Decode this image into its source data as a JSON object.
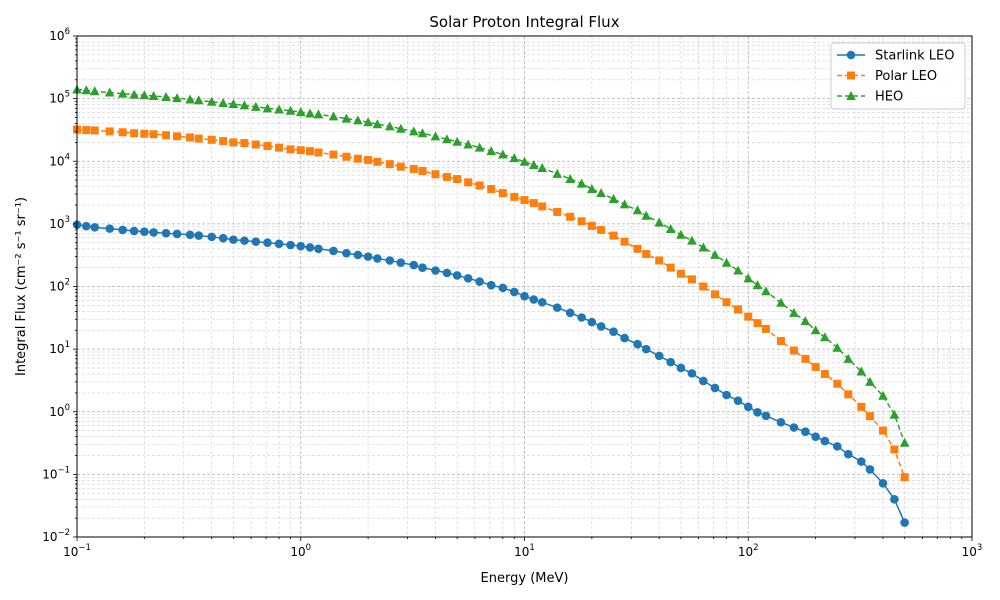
{
  "chart_data": {
    "type": "line",
    "title": "Solar Proton Integral Flux",
    "xlabel": "Energy (MeV)",
    "ylabel": "Integral Flux (cm⁻² s⁻¹ sr⁻¹)",
    "xscale": "log",
    "yscale": "log",
    "xlim": [
      0.1,
      1000
    ],
    "ylim": [
      0.01,
      1000000
    ],
    "grid": "major and minor",
    "legend_position": "upper-right",
    "x_ticks": [
      {
        "base": "10",
        "exp": "−1"
      },
      {
        "base": "10",
        "exp": "0"
      },
      {
        "base": "10",
        "exp": "1"
      },
      {
        "base": "10",
        "exp": "2"
      },
      {
        "base": "10",
        "exp": "3"
      }
    ],
    "y_ticks": [
      {
        "base": "10",
        "exp": "−2"
      },
      {
        "base": "10",
        "exp": "−1"
      },
      {
        "base": "10",
        "exp": "0"
      },
      {
        "base": "10",
        "exp": "1"
      },
      {
        "base": "10",
        "exp": "2"
      },
      {
        "base": "10",
        "exp": "3"
      },
      {
        "base": "10",
        "exp": "4"
      },
      {
        "base": "10",
        "exp": "5"
      },
      {
        "base": "10",
        "exp": "6"
      }
    ],
    "x": [
      0.1,
      0.11,
      0.12,
      0.14,
      0.16,
      0.18,
      0.2,
      0.22,
      0.25,
      0.28,
      0.32,
      0.35,
      0.4,
      0.45,
      0.5,
      0.56,
      0.63,
      0.71,
      0.8,
      0.9,
      1.0,
      1.1,
      1.2,
      1.4,
      1.6,
      1.8,
      2.0,
      2.2,
      2.5,
      2.8,
      3.2,
      3.5,
      4.0,
      4.5,
      5.0,
      5.6,
      6.3,
      7.1,
      8.0,
      9.0,
      10,
      11,
      12,
      14,
      16,
      18,
      20,
      22,
      25,
      28,
      32,
      35,
      40,
      45,
      50,
      56,
      63,
      71,
      80,
      90,
      100,
      110,
      120,
      140,
      160,
      180,
      200,
      220,
      250,
      280,
      320,
      350,
      400,
      450,
      500
    ],
    "series": [
      {
        "name": "Starlink LEO",
        "color": "#1f77b4",
        "marker": "circle",
        "linestyle": "solid",
        "values": [
          970,
          920,
          880,
          840,
          800,
          770,
          750,
          730,
          710,
          690,
          670,
          650,
          620,
          590,
          560,
          540,
          520,
          500,
          480,
          460,
          440,
          420,
          400,
          370,
          340,
          320,
          300,
          280,
          260,
          240,
          220,
          200,
          180,
          165,
          150,
          135,
          120,
          105,
          95,
          82,
          70,
          62,
          56,
          46,
          38,
          32,
          27,
          23,
          19,
          15,
          12,
          10,
          7.8,
          6.2,
          5.0,
          4.1,
          3.1,
          2.4,
          1.85,
          1.5,
          1.2,
          0.98,
          0.86,
          0.68,
          0.56,
          0.48,
          0.4,
          0.34,
          0.28,
          0.21,
          0.16,
          0.12,
          0.072,
          0.04,
          0.017
        ]
      },
      {
        "name": "Polar LEO",
        "color": "#ff7f0e",
        "marker": "square",
        "linestyle": "dashed",
        "values": [
          32000,
          31500,
          31000,
          30000,
          29000,
          28000,
          27500,
          27000,
          26000,
          25000,
          24000,
          23000,
          22000,
          21000,
          20000,
          19500,
          18500,
          17500,
          16500,
          15500,
          15000,
          14500,
          13800,
          12800,
          11800,
          11000,
          10500,
          9800,
          9000,
          8200,
          7500,
          7000,
          6200,
          5600,
          5200,
          4600,
          4100,
          3600,
          3100,
          2700,
          2400,
          2150,
          1900,
          1550,
          1300,
          1100,
          930,
          800,
          650,
          520,
          400,
          330,
          260,
          200,
          160,
          130,
          100,
          75,
          56,
          43,
          33,
          26,
          21,
          13.5,
          9.5,
          7.0,
          5.2,
          4.0,
          2.8,
          1.9,
          1.2,
          0.85,
          0.5,
          0.25,
          0.09
        ]
      },
      {
        "name": "HEO",
        "color": "#2ca02c",
        "marker": "triangle",
        "linestyle": "dashed",
        "values": [
          140000,
          136000,
          131000,
          125000,
          120000,
          116000,
          113000,
          110000,
          106000,
          102000,
          97000,
          94000,
          89000,
          85000,
          82000,
          78000,
          74000,
          70000,
          67000,
          64000,
          61000,
          58000,
          56000,
          52000,
          48000,
          45000,
          42000,
          39000,
          36000,
          33000,
          30000,
          28000,
          25000,
          22500,
          20500,
          18500,
          16500,
          14500,
          12800,
          11200,
          9800,
          8700,
          7800,
          6300,
          5200,
          4400,
          3600,
          3100,
          2500,
          2050,
          1650,
          1350,
          1050,
          830,
          670,
          540,
          420,
          320,
          240,
          180,
          135,
          105,
          84,
          55,
          38,
          28,
          20,
          15.5,
          10.5,
          7.0,
          4.4,
          3.0,
          1.8,
          0.9,
          0.32
        ]
      }
    ]
  }
}
